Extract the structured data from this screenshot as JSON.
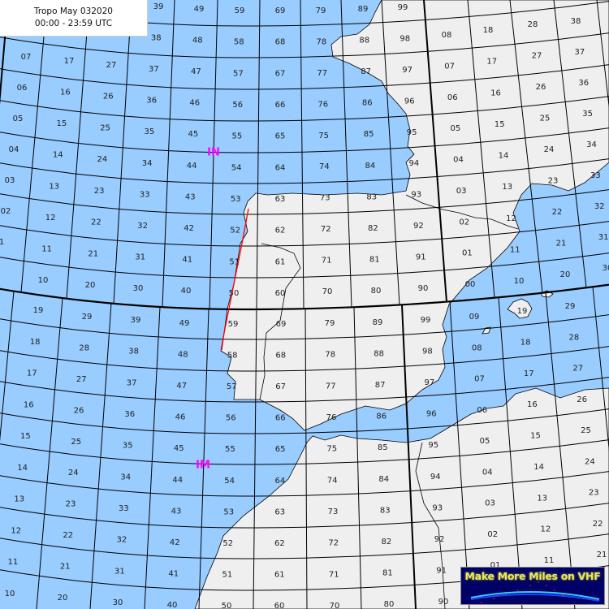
{
  "header": {
    "title": "Tropo May 032020",
    "time_range": "00:00 - 23:59 UTC"
  },
  "logo": {
    "text": "Make More Miles on VHF"
  },
  "colors": {
    "sea": "#99ccff",
    "land": "#efefef",
    "grid": "#000000",
    "square_label": "#ff00ff",
    "path": "#ff0000",
    "logo_bg": "#000066",
    "logo_text": "#e8e860"
  },
  "square_labels": [
    "IN",
    "IM"
  ],
  "grid_labels": {
    "upper": [
      [
        "07",
        "06",
        "05",
        "04",
        "03",
        "02",
        "1"
      ],
      [
        "17",
        "16",
        "15",
        "14",
        "13",
        "12",
        "11",
        "10"
      ],
      [
        "27",
        "26",
        "25",
        "24",
        "23",
        "22",
        "21",
        "20"
      ],
      [
        "39",
        "38",
        "37",
        "36",
        "35",
        "34",
        "33",
        "32",
        "31",
        "30"
      ],
      [
        "49",
        "48",
        "47",
        "46",
        "45",
        "44",
        "43",
        "42",
        "41",
        "40"
      ],
      [
        "59",
        "58",
        "57",
        "56",
        "55",
        "54",
        "53",
        "52",
        "51",
        "50"
      ],
      [
        "69",
        "68",
        "67",
        "66",
        "65",
        "64",
        "63",
        "62",
        "61",
        "60"
      ],
      [
        "79",
        "78",
        "77",
        "76",
        "75",
        "74",
        "73",
        "72",
        "71",
        "70"
      ],
      [
        "89",
        "88",
        "87",
        "86",
        "85",
        "84",
        "83",
        "82",
        "81",
        "80"
      ],
      [
        "99",
        "98",
        "97",
        "96",
        "95",
        "94",
        "93",
        "92",
        "91",
        "90"
      ],
      [
        "08",
        "07",
        "06",
        "05",
        "04",
        "03",
        "02",
        "01",
        "00"
      ],
      [
        "18",
        "17",
        "16",
        "15",
        "14",
        "13",
        "12",
        "11",
        "10"
      ],
      [
        "28",
        "27",
        "26",
        "25",
        "24",
        "23",
        "22",
        "21",
        "20"
      ],
      [
        "38",
        "37",
        "36",
        "35",
        "34",
        "33",
        "32",
        "31",
        "30"
      ]
    ],
    "lower": [
      [
        "19",
        "18",
        "17",
        "16",
        "15",
        "14",
        "13",
        "12",
        "11",
        "10"
      ],
      [
        "29",
        "28",
        "27",
        "26",
        "25",
        "24",
        "23",
        "22",
        "21",
        "20"
      ],
      [
        "39",
        "38",
        "37",
        "36",
        "35",
        "34",
        "33",
        "32",
        "31",
        "30"
      ],
      [
        "49",
        "48",
        "47",
        "46",
        "45",
        "44",
        "43",
        "42",
        "41",
        "40"
      ],
      [
        "59",
        "58",
        "57",
        "56",
        "55",
        "54",
        "53",
        "52",
        "51",
        "50"
      ],
      [
        "69",
        "68",
        "67",
        "66",
        "65",
        "64",
        "63",
        "62",
        "61",
        "60"
      ],
      [
        "79",
        "78",
        "77",
        "76",
        "75",
        "74",
        "73",
        "72",
        "71",
        "70"
      ],
      [
        "89",
        "88",
        "87",
        "86",
        "85",
        "84",
        "83",
        "82",
        "81",
        "80"
      ],
      [
        "99",
        "98",
        "97",
        "96",
        "95",
        "94",
        "93",
        "92",
        "91",
        "90"
      ],
      [
        "09",
        "08",
        "07",
        "06",
        "05",
        "04",
        "03",
        "02",
        "01"
      ],
      [
        "19",
        "18",
        "17",
        "16",
        "15",
        "14",
        "13",
        "12",
        "11"
      ],
      [
        "29",
        "28",
        "27",
        "26",
        "25",
        "24",
        "23",
        "22",
        "21"
      ]
    ]
  }
}
